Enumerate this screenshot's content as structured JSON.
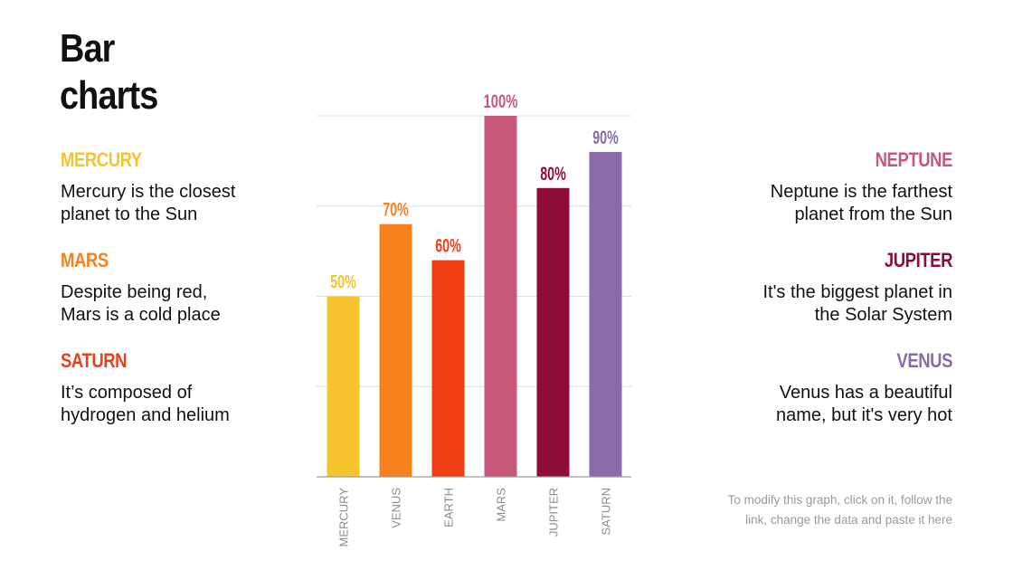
{
  "title_line1": "Bar",
  "title_line2": "charts",
  "left_items": [
    {
      "name": "MERCURY",
      "color": "#f5c42c",
      "text_line1": "Mercury is the closest",
      "text_line2": "planet to the Sun"
    },
    {
      "name": "MARS",
      "color": "#f7811c",
      "text_line1": "Despite being red,",
      "text_line2": "Mars is a cold place"
    },
    {
      "name": "SATURN",
      "color": "#e7401a",
      "text_line1": "It’s composed of",
      "text_line2": "hydrogen and helium"
    }
  ],
  "right_items": [
    {
      "name": "NEPTUNE",
      "color": "#c8587a",
      "text_line1": "Neptune is the farthest",
      "text_line2": "planet from the Sun"
    },
    {
      "name": "JUPITER",
      "color": "#8e0c37",
      "text_line1": "It's the biggest planet in",
      "text_line2": "the Solar System"
    },
    {
      "name": "VENUS",
      "color": "#8a6aa9",
      "text_line1": "Venus has a beautiful",
      "text_line2": "name, but it's very hot"
    }
  ],
  "note_line1": "To modify this graph, click on it, follow the",
  "note_line2": "link, change the data and paste it here",
  "chart_data": {
    "type": "bar",
    "title": "",
    "xlabel": "",
    "ylabel": "",
    "ylim": [
      0,
      100
    ],
    "gridlines": [
      0,
      25,
      50,
      75,
      100
    ],
    "categories": [
      "MERCURY",
      "VENUS",
      "EARTH",
      "MARS",
      "JUPITER",
      "SATURN"
    ],
    "values": [
      50,
      70,
      60,
      100,
      80,
      90
    ],
    "value_labels": [
      "50%",
      "70%",
      "60%",
      "100%",
      "80%",
      "90%"
    ],
    "colors": [
      "#f5c42c",
      "#f7811c",
      "#f03e12",
      "#c8587a",
      "#8e0c37",
      "#8a6aa9"
    ]
  }
}
